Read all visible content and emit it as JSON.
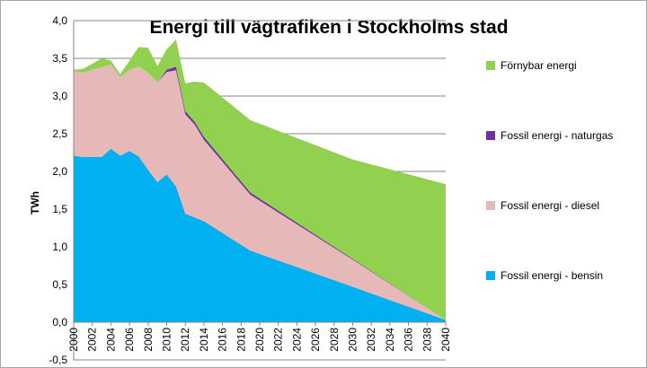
{
  "chart_data": {
    "type": "area",
    "stacked": true,
    "title": "Energi till vägtrafiken i Stockholms stad",
    "ylabel": "TWh",
    "xlabel": "",
    "ylim": [
      -0.5,
      4.0
    ],
    "xlim": [
      2000,
      2040
    ],
    "grid": true,
    "legend_position": "right",
    "x": [
      2000,
      2001,
      2002,
      2003,
      2004,
      2005,
      2006,
      2007,
      2008,
      2009,
      2010,
      2011,
      2012,
      2013,
      2014,
      2019,
      2030,
      2040
    ],
    "x_ticks": [
      "2000",
      "2002",
      "2004",
      "2006",
      "2008",
      "2010",
      "2012",
      "2014",
      "2016",
      "2018",
      "2020",
      "2022",
      "2024",
      "2026",
      "2028",
      "2030",
      "2032",
      "2034",
      "2036",
      "2038",
      "2040"
    ],
    "y_ticks": [
      "4,0",
      "3,5",
      "3,0",
      "2,5",
      "2,0",
      "1,5",
      "1,0",
      "0,5",
      "0,0",
      "-0,5"
    ],
    "series": [
      {
        "name": "Fossil energi  - bensin",
        "color": "#00b0f0",
        "values": [
          2.21,
          2.19,
          2.19,
          2.19,
          2.3,
          2.21,
          2.27,
          2.2,
          2.02,
          1.86,
          1.96,
          1.8,
          1.44,
          1.39,
          1.34,
          0.95,
          0.47,
          0.03
        ]
      },
      {
        "name": "Fossil energi - diesel",
        "color": "#e6b9b8",
        "values": [
          1.12,
          1.12,
          1.16,
          1.19,
          1.12,
          1.04,
          1.08,
          1.19,
          1.29,
          1.32,
          1.36,
          1.54,
          1.32,
          1.23,
          1.08,
          0.74,
          0.36,
          0.0
        ]
      },
      {
        "name": "Fossil energi - naturgas",
        "color": "#7030a0",
        "values": [
          0.0,
          0.0,
          0.0,
          0.0,
          0.0,
          0.0,
          0.0,
          0.0,
          0.0,
          0.0,
          0.03,
          0.05,
          0.04,
          0.04,
          0.04,
          0.03,
          0.01,
          0.0
        ]
      },
      {
        "name": "Förnybar energi",
        "color": "#92d050",
        "values": [
          0.02,
          0.05,
          0.08,
          0.12,
          0.05,
          0.04,
          0.12,
          0.26,
          0.33,
          0.22,
          0.27,
          0.36,
          0.37,
          0.53,
          0.72,
          0.96,
          1.32,
          1.8
        ]
      }
    ],
    "legend_order": [
      "Förnybar energi",
      "Fossil energi - naturgas",
      "Fossil energi - diesel",
      "Fossil energi  - bensin"
    ]
  }
}
